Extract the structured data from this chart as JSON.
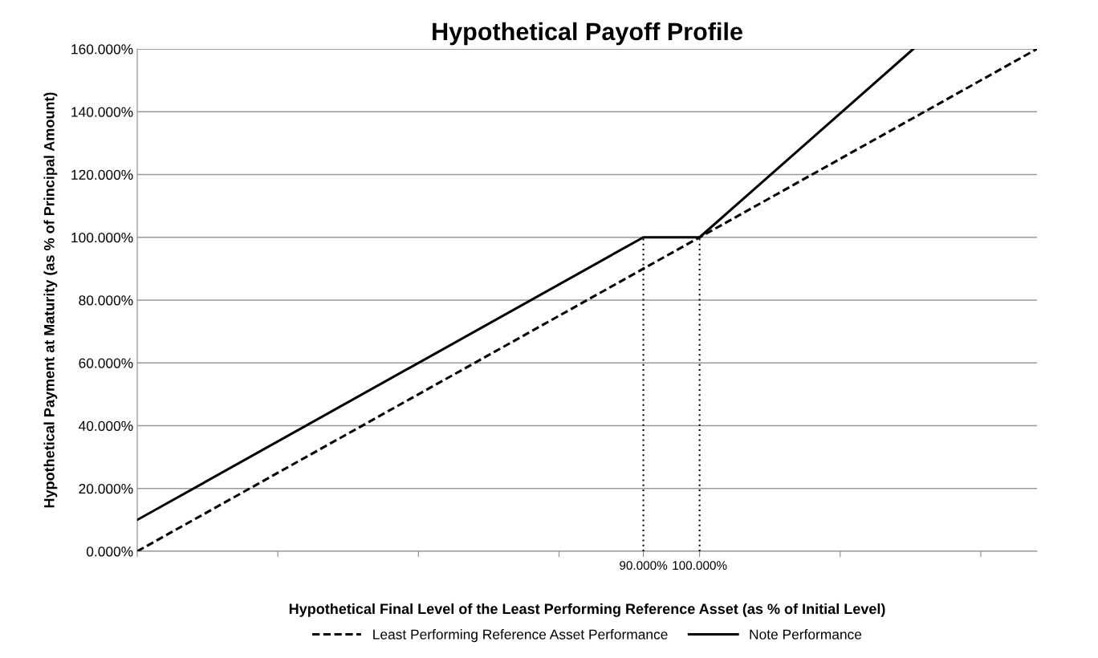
{
  "chart_data": {
    "type": "line",
    "title": "Hypothetical Payoff Profile",
    "xlabel": "Hypothetical Final Level of the Least Performing Reference Asset (as % of Initial Level)",
    "ylabel": "Hypothetical Payment at Maturity (as % of Principal Amount)",
    "series": [
      {
        "name": "Least Performing Reference Asset Performance",
        "color": "#000000",
        "line_style": "dashed",
        "x": [
          0,
          160
        ],
        "values": [
          0,
          160
        ]
      },
      {
        "name": "Note Performance",
        "color": "#000000",
        "line_style": "solid",
        "x": [
          0,
          90,
          100,
          138
        ],
        "values": [
          10,
          100,
          100,
          160
        ]
      },
      {
        "color": "#000000",
        "line_style": "dotted",
        "x": [
          90,
          90
        ],
        "values": [
          0,
          100
        ]
      },
      {
        "color": "#000000",
        "line_style": "dotted",
        "x": [
          100,
          100
        ],
        "values": [
          0,
          100
        ]
      }
    ],
    "xlim": [
      0,
      160
    ],
    "xticks": [
      {
        "value": 0,
        "label": null
      },
      {
        "value": 25,
        "label": null
      },
      {
        "value": 50,
        "label": null
      },
      {
        "value": 75,
        "label": null
      },
      {
        "value": 90,
        "label": "90.000%"
      },
      {
        "value": 100,
        "label": "100.000%"
      },
      {
        "value": 125,
        "label": null
      },
      {
        "value": 150,
        "label": null
      }
    ],
    "ylim": [
      0,
      160
    ],
    "yticks": [
      {
        "value": 0,
        "label": "0.000%"
      },
      {
        "value": 20,
        "label": "20.000%"
      },
      {
        "value": 40,
        "label": "40.000%"
      },
      {
        "value": 60,
        "label": "60.000%"
      },
      {
        "value": 80,
        "label": "80.000%"
      },
      {
        "value": 100,
        "label": "100.000%"
      },
      {
        "value": 120,
        "label": "120.000%"
      },
      {
        "value": 140,
        "label": "140.000%"
      },
      {
        "value": 160,
        "label": "160.000%"
      }
    ],
    "grid": "y",
    "legend": "bottom",
    "marker": "none"
  }
}
